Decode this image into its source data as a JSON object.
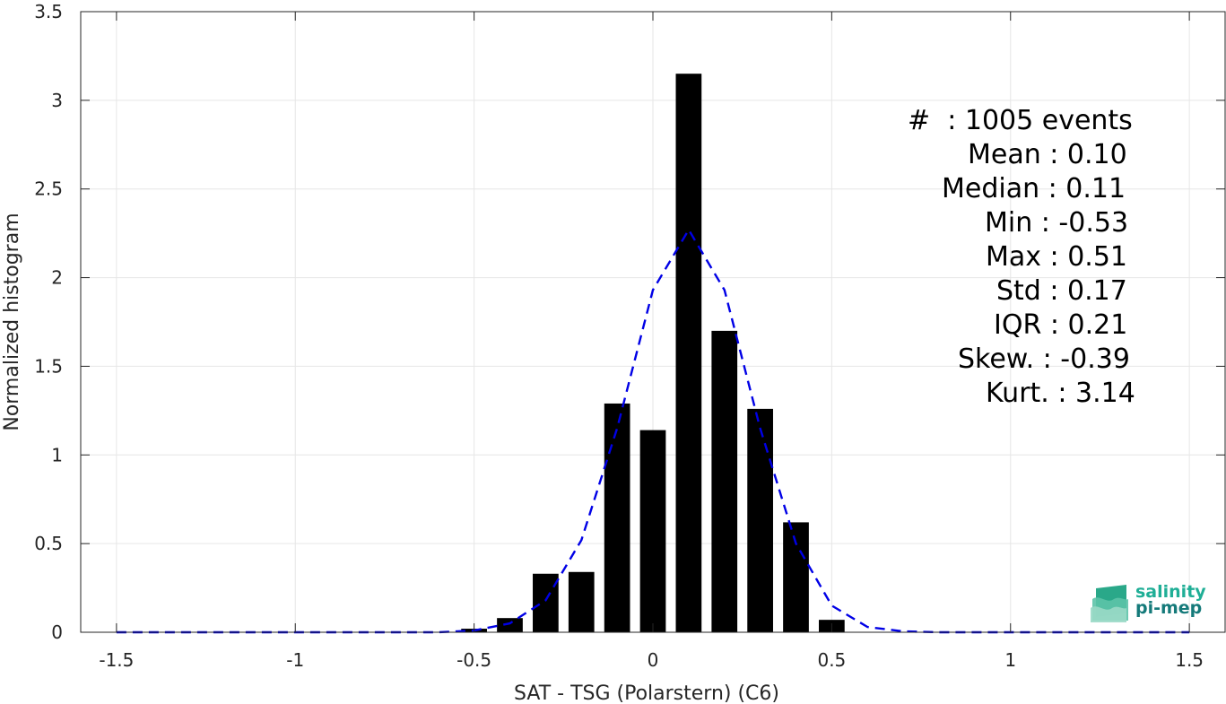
{
  "chart_data": {
    "type": "bar",
    "xlabel": "SAT - TSG (Polarstern) (C6)",
    "ylabel": "Normalized histogram",
    "xlim": [
      -1.6,
      1.6
    ],
    "ylim": [
      0,
      3.5
    ],
    "xticks": [
      -1.5,
      -1,
      -0.5,
      0,
      0.5,
      1,
      1.5
    ],
    "xtick_labels": [
      "-1.5",
      "-1",
      "-0.5",
      "0",
      "0.5",
      "1",
      "1.5"
    ],
    "yticks": [
      0,
      0.5,
      1,
      1.5,
      2,
      2.5,
      3,
      3.5
    ],
    "ytick_labels": [
      "0",
      "0.5",
      "1",
      "1.5",
      "2",
      "2.5",
      "3",
      "3.5"
    ],
    "grid": true,
    "bar_color": "#000000",
    "bars": {
      "x": [
        -0.5,
        -0.4,
        -0.3,
        -0.2,
        -0.1,
        0.0,
        0.1,
        0.2,
        0.3,
        0.4,
        0.5
      ],
      "values": [
        0.02,
        0.08,
        0.33,
        0.34,
        1.29,
        1.14,
        3.15,
        1.7,
        1.26,
        0.62,
        0.07
      ]
    },
    "fit_curve": {
      "style": "dashed",
      "color": "#0000e6",
      "x": [
        -1.5,
        -1.4,
        -1.3,
        -1.2,
        -1.1,
        -1.0,
        -0.9,
        -0.8,
        -0.7,
        -0.6,
        -0.5,
        -0.4,
        -0.3,
        -0.2,
        -0.1,
        0.0,
        0.1,
        0.2,
        0.3,
        0.4,
        0.5,
        0.6,
        0.7,
        0.8,
        0.9,
        1.0,
        1.1,
        1.2,
        1.3,
        1.4,
        1.5
      ],
      "y": [
        0,
        0,
        0,
        0,
        0,
        0,
        0,
        0,
        0,
        0,
        0.01,
        0.05,
        0.18,
        0.52,
        1.15,
        1.93,
        2.27,
        1.93,
        1.15,
        0.5,
        0.15,
        0.03,
        0.005,
        0,
        0,
        0,
        0,
        0,
        0,
        0,
        0
      ]
    },
    "stats": [
      {
        "label": "#  : 1005 events"
      },
      {
        "label": "Mean : 0.10"
      },
      {
        "label": "Median : 0.11"
      },
      {
        "label": "Min : -0.53"
      },
      {
        "label": "Max : 0.51"
      },
      {
        "label": "Std : 0.17"
      },
      {
        "label": "IQR : 0.21"
      },
      {
        "label": "Skew. : -0.39"
      },
      {
        "label": "Kurt. : 3.14"
      }
    ]
  },
  "logo": {
    "line1": "salinity",
    "line2": "pi-mep",
    "color1": "#1fae96",
    "color2": "#157a7a"
  }
}
